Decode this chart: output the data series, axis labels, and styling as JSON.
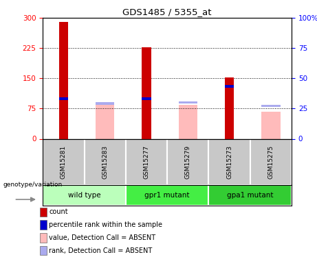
{
  "title": "GDS1485 / 5355_at",
  "samples": [
    "GSM15281",
    "GSM15283",
    "GSM15277",
    "GSM15279",
    "GSM15273",
    "GSM15275"
  ],
  "groups": [
    {
      "label": "wild type",
      "indices": [
        0,
        1
      ]
    },
    {
      "label": "gpr1 mutant",
      "indices": [
        2,
        3
      ]
    },
    {
      "label": "gpa1 mutant",
      "indices": [
        4,
        5
      ]
    }
  ],
  "group_colors": [
    "#bbffbb",
    "#44ee44",
    "#33cc33"
  ],
  "red_bars": [
    290,
    0,
    228,
    0,
    153,
    0
  ],
  "pink_bars": [
    0,
    90,
    0,
    85,
    0,
    68
  ],
  "blue_markers_val": [
    100,
    0,
    100,
    0,
    130,
    0
  ],
  "lightblue_markers_val": [
    0,
    88,
    0,
    90,
    0,
    82
  ],
  "ylim_left": [
    0,
    300
  ],
  "ylim_right": [
    0,
    100
  ],
  "yticks_left": [
    0,
    75,
    150,
    225,
    300
  ],
  "yticks_right": [
    0,
    25,
    50,
    75,
    100
  ],
  "ytick_labels_right": [
    "0",
    "25",
    "50",
    "75",
    "100%"
  ],
  "red_color": "#cc0000",
  "pink_color": "#ffbbbb",
  "blue_color": "#0000cc",
  "lightblue_color": "#aaaaee",
  "label_bg_color": "#c8c8c8",
  "legend_items": [
    {
      "color": "#cc0000",
      "label": "count"
    },
    {
      "color": "#0000cc",
      "label": "percentile rank within the sample"
    },
    {
      "color": "#ffbbbb",
      "label": "value, Detection Call = ABSENT"
    },
    {
      "color": "#aaaaee",
      "label": "rank, Detection Call = ABSENT"
    }
  ]
}
